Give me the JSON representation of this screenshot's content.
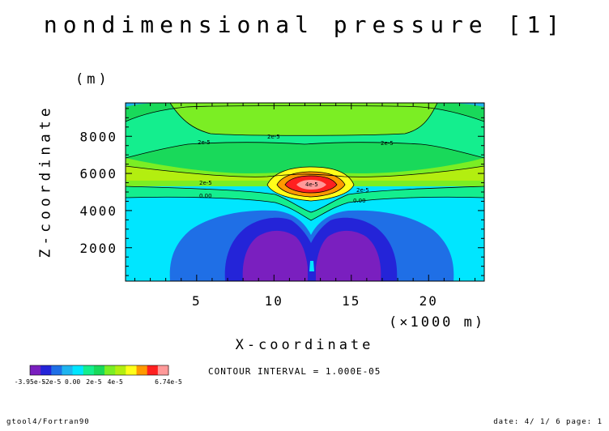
{
  "title": "nondimensional pressure [1]",
  "footer": {
    "left": "gtool4/Fortran90",
    "right": "date: 4/ 1/ 6 page: 1"
  },
  "contour_interval": "CONTOUR INTERVAL = 1.000E-05",
  "chart_data": {
    "type": "heatmap",
    "title": "nondimensional pressure [1]",
    "xlabel": "X-coordinate",
    "xunit": "(×1000 m)",
    "ylabel": "Z-coordinate",
    "yunit": "(m)",
    "xlim": [
      0.4,
      23.6
    ],
    "ylim": [
      200,
      9800
    ],
    "xticks": [
      "5",
      "10",
      "15",
      "20"
    ],
    "yticks": [
      "2000",
      "4000",
      "6000",
      "8000"
    ],
    "contour_labels": [
      "2e-5",
      "2e-5",
      "2e-5",
      "2e-5",
      "2e-5",
      "0.00",
      "0.00",
      "4e-5"
    ],
    "colorbar": {
      "levels": [
        "-3.95e-5",
        "-2e-5",
        "0.00",
        "2e-5",
        "4e-5",
        "6.74e-5"
      ],
      "colors": [
        "#7a1fbf",
        "#2424d8",
        "#1f6fe6",
        "#1fb4ef",
        "#00e6ff",
        "#14ee8e",
        "#19d95a",
        "#7bee24",
        "#b3ee10",
        "#ffff1a",
        "#ff9900",
        "#ff2020",
        "#ff9999"
      ]
    }
  }
}
